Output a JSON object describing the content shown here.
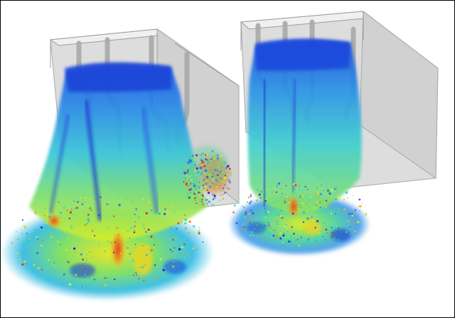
{
  "image": {
    "subject": "cfd-particle-simulation",
    "background_color": "#ffffff",
    "border_color": "#000000",
    "units": [
      {
        "name": "left-unit"
      },
      {
        "name": "right-unit"
      }
    ],
    "colormap": [
      "#1f1fd6",
      "#2d6cf0",
      "#22b5e8",
      "#35e0c8",
      "#7ee85a",
      "#d9ee2a",
      "#f5d21a",
      "#f08a1e",
      "#e0301e"
    ]
  }
}
